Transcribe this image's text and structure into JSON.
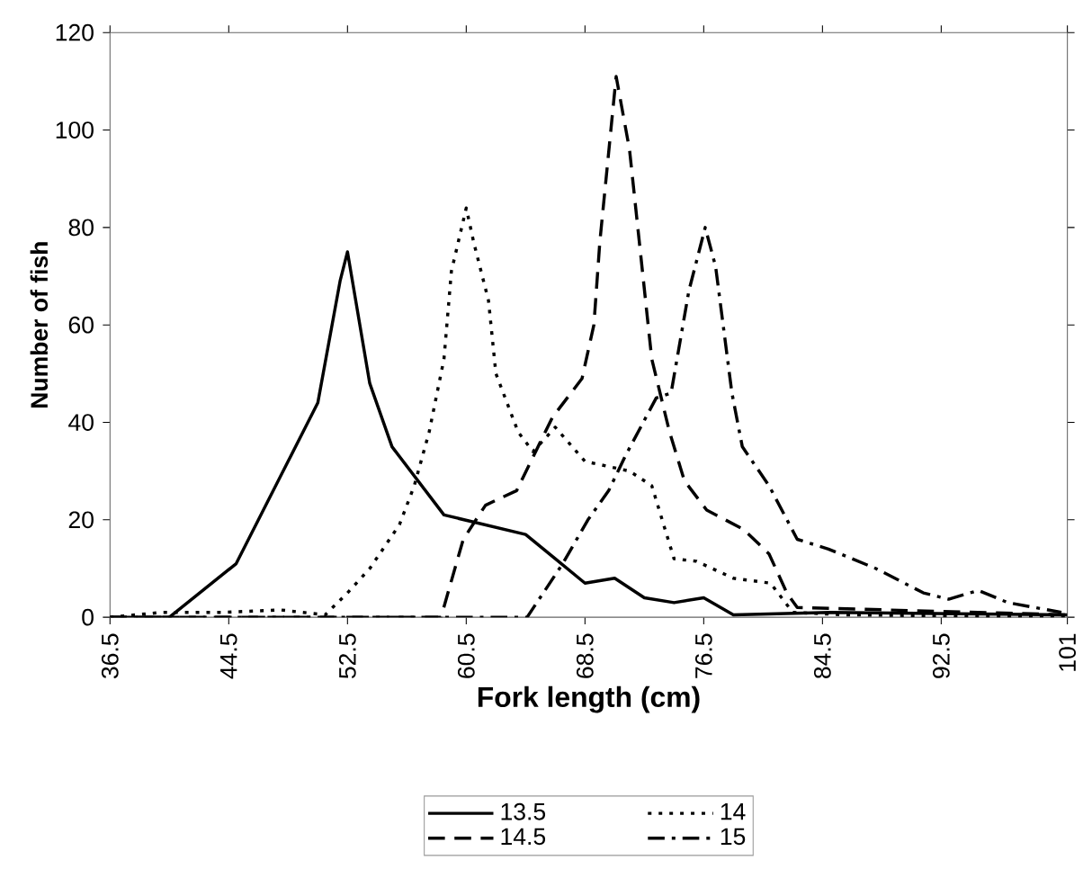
{
  "chart_data": {
    "type": "line",
    "xlabel": "Fork length (cm)",
    "ylabel": "Number of fish",
    "xlim": [
      36.5,
      101
    ],
    "xticks": [
      36.5,
      44.5,
      52.5,
      60.5,
      68.5,
      76.5,
      84.5,
      92.5,
      101
    ],
    "ylim": [
      0,
      120
    ],
    "yticks": [
      0,
      20,
      40,
      60,
      80,
      100,
      120
    ],
    "grid": false,
    "legend": "bottom",
    "marker": "none",
    "series": [
      {
        "name": "13.5",
        "color": "#000000",
        "line_style": "solid",
        "x": [
          36.5,
          40.5,
          45,
          48.5,
          50.5,
          52,
          52.5,
          54,
          55.5,
          59,
          64.5,
          66.5,
          68.5,
          70.5,
          72.5,
          74.5,
          76.5,
          78.5,
          85,
          101
        ],
        "values": [
          0,
          0,
          11,
          32,
          44,
          69,
          75,
          48,
          35,
          21,
          17,
          12,
          7,
          8,
          4,
          3,
          4,
          0.5,
          1,
          0.5
        ]
      },
      {
        "name": "14",
        "color": "#000000",
        "line_style": "dotted",
        "x": [
          36.5,
          40,
          44,
          48,
          51,
          52.5,
          54,
          56,
          57,
          58,
          59,
          59.5,
          60.5,
          61,
          62,
          62.5,
          64,
          65,
          66.5,
          68.5,
          71.5,
          73,
          74.5,
          76,
          78.5,
          81,
          82.5,
          86,
          101
        ],
        "values": [
          0,
          1,
          1,
          1.5,
          0.5,
          5,
          10,
          19,
          27,
          38,
          53,
          71,
          84,
          77,
          65,
          50,
          38,
          34,
          39,
          32,
          30,
          27,
          12,
          11.5,
          8,
          7,
          1,
          0.5,
          0
        ]
      },
      {
        "name": "14.5",
        "color": "#000000",
        "line_style": "dashed",
        "x": [
          36.5,
          58.8,
          60.3,
          61.8,
          63.9,
          66.3,
          68.3,
          69.1,
          69.5,
          70.6,
          71.5,
          73,
          74.2,
          75.2,
          76.7,
          79.2,
          80.9,
          82.1,
          82.8,
          101
        ],
        "values": [
          0,
          0,
          16,
          23,
          26,
          41,
          49,
          60,
          77,
          111,
          96,
          53,
          38,
          28,
          22,
          18,
          13,
          5,
          2,
          0.5
        ]
      },
      {
        "name": "15",
        "color": "#000000",
        "line_style": "dashdot",
        "x": [
          36.5,
          64.6,
          67,
          68.7,
          70.1,
          71.2,
          73.3,
          74.3,
          75.5,
          76.6,
          77.3,
          78.4,
          79.1,
          80.9,
          82.8,
          84.9,
          88.1,
          91.3,
          93,
          95,
          97,
          100.6
        ],
        "values": [
          0,
          0,
          11,
          20,
          26,
          33,
          45,
          46,
          67,
          80,
          72,
          46,
          35,
          27,
          16,
          14,
          10,
          5,
          3.7,
          5.5,
          3,
          1
        ]
      }
    ]
  }
}
